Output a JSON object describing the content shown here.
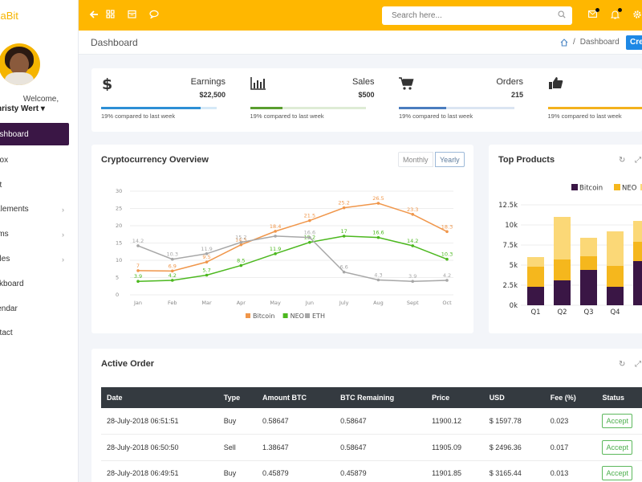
{
  "brand": "xaBit",
  "user": {
    "welcome": "Welcome,",
    "name": "hristy Wert"
  },
  "sidebar": {
    "items": [
      {
        "label": "ashboard",
        "active": true
      },
      {
        "label": "box"
      },
      {
        "label": "at"
      },
      {
        "label": "Elements",
        "chevron": true
      },
      {
        "label": "rms",
        "chevron": true
      },
      {
        "label": "bles",
        "chevron": true
      },
      {
        "label": "skboard"
      },
      {
        "label": "lendar"
      },
      {
        "label": "ntact"
      }
    ]
  },
  "topbar": {
    "search_placeholder": "Search here..."
  },
  "page": {
    "title": "Dashboard",
    "breadcrumb": "Dashboard",
    "create_label": "Cre"
  },
  "stats": [
    {
      "label": "Earnings",
      "value": "$22,500",
      "sub": "19% compared to last week",
      "color": "#2d8fd5",
      "progress": 0.86,
      "icon": "dollar-icon"
    },
    {
      "label": "Sales",
      "value": "$500",
      "sub": "19% compared to last week",
      "color": "#5a9e2f",
      "progress": 0.28,
      "icon": "bar-chart-icon"
    },
    {
      "label": "Orders",
      "value": "215",
      "sub": "19% compared to last week",
      "color": "#4a7dbf",
      "progress": 0.41,
      "icon": "cart-icon"
    },
    {
      "label": "",
      "value": "",
      "sub": "19% compared to last week",
      "color": "#f3b11d",
      "progress": 0.9,
      "icon": "thumbs-up-icon"
    }
  ],
  "crypto": {
    "title": "Cryptocurrency Overview",
    "toggle": [
      "Monthly",
      "Yearly"
    ]
  },
  "products": {
    "title": "Top Products"
  },
  "orders": {
    "title": "Active Order",
    "columns": [
      "Date",
      "Type",
      "Amount BTC",
      "BTC Remaining",
      "Price",
      "USD",
      "Fee (%)",
      "Status"
    ],
    "rows": [
      [
        "28-July-2018 06:51:51",
        "Buy",
        "0.58647",
        "0.58647",
        "11900.12",
        "$ 1597.78",
        "0.023",
        "Accept"
      ],
      [
        "28-July-2018 06:50:50",
        "Sell",
        "1.38647",
        "0.58647",
        "11905.09",
        "$ 2496.36",
        "0.017",
        "Accept"
      ],
      [
        "28-July-2018 06:49:51",
        "Buy",
        "0.45879",
        "0.45879",
        "11901.85",
        "$ 3165.44",
        "0.013",
        "Accept"
      ]
    ]
  },
  "chart_data": [
    {
      "type": "line",
      "categories": [
        "Jan",
        "Feb",
        "Mar",
        "Apr",
        "May",
        "Jun",
        "July",
        "Aug",
        "Sept",
        "Oct"
      ],
      "ylim": [
        0,
        30
      ],
      "yticks": [
        0,
        5,
        10,
        15,
        20,
        25,
        30
      ],
      "legend": "bottom",
      "grid": true,
      "series": [
        {
          "name": "Bitcoin",
          "color": "#f0964a",
          "values": [
            7,
            6.9,
            9.5,
            14.5,
            18.4,
            21.5,
            25.2,
            26.5,
            23.3,
            18.3
          ],
          "labels": [
            "7",
            "6.9",
            "9.5",
            "14.5",
            "18.4",
            "21.5",
            "25.2",
            "26.5",
            "23.3",
            "18.3"
          ]
        },
        {
          "name": "NEO",
          "color": "#4cb81f",
          "values": [
            3.9,
            4.2,
            5.7,
            8.5,
            11.9,
            15.2,
            17,
            16.6,
            14.2,
            10.3
          ],
          "labels": [
            "3.9",
            "4.2",
            "5.7",
            "8.5",
            "11.9",
            "15.2",
            "17",
            "16.6",
            "14.2",
            "10.3"
          ]
        },
        {
          "name": "ETH",
          "color": "#a7a7a7",
          "values": [
            14.2,
            10.3,
            11.9,
            15.2,
            17,
            16.6,
            6.6,
            4.3,
            3.9,
            4.2
          ],
          "labels": [
            "14.2",
            "10.3",
            "11.9",
            "15.2",
            "",
            "16.6",
            "6.6",
            "4.3",
            "3.9",
            "4.2"
          ]
        }
      ]
    },
    {
      "type": "bar",
      "stacked": true,
      "categories": [
        "Q1",
        "Q2",
        "Q3",
        "Q4",
        "Q5"
      ],
      "category_labels": [
        "Q1",
        "Q2",
        "Q3",
        "Q4",
        ""
      ],
      "ylim": [
        0,
        12500
      ],
      "yticks": [
        0,
        2500,
        5000,
        7500,
        10000,
        12500
      ],
      "ytick_labels": [
        "0k",
        "2.5k",
        "5k",
        "7.5k",
        "10k",
        "12.5k"
      ],
      "legend": "top",
      "series": [
        {
          "name": "Bitcoin",
          "color": "#3a1645",
          "values": [
            2300,
            3100,
            4400,
            2300,
            5500
          ]
        },
        {
          "name": "NEO",
          "color": "#f5b71d",
          "values": [
            2500,
            2600,
            1700,
            2600,
            2400
          ]
        },
        {
          "name": "",
          "color": "#fbd877",
          "values": [
            1200,
            5300,
            2300,
            4300,
            2600
          ]
        }
      ]
    }
  ]
}
